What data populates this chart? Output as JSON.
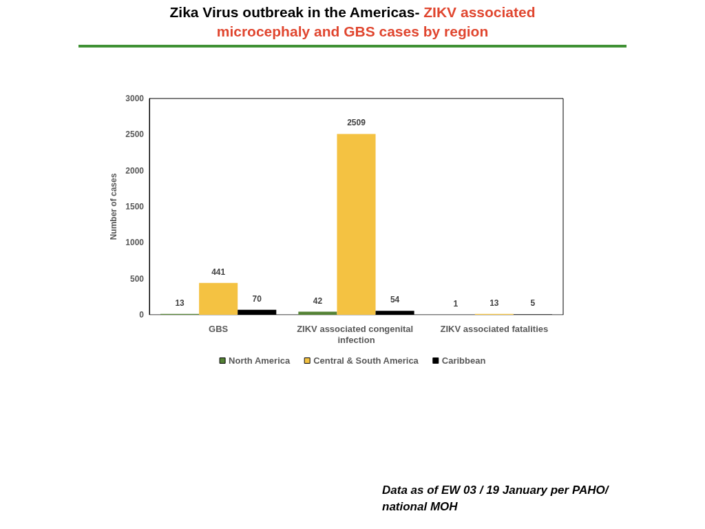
{
  "chart_data": {
    "type": "bar",
    "title": "Zika Virus outbreak in the Americas-",
    "subtitle": "ZIKV associated microcephaly and GBS cases by region",
    "ylabel": "Number of cases",
    "categories": [
      "GBS",
      "ZIKV associated congenital infection",
      "ZIKV associated fatalities"
    ],
    "series": [
      {
        "name": "North America",
        "color": "#548235",
        "values": [
          13,
          42,
          1
        ]
      },
      {
        "name": "Central & South America",
        "color": "#f4c242",
        "values": [
          441,
          2509,
          13
        ]
      },
      {
        "name": "Caribbean",
        "color": "#000000",
        "values": [
          70,
          54,
          5
        ]
      }
    ],
    "ylim": [
      0,
      3000
    ],
    "yticks": [
      0,
      500,
      1000,
      1500,
      2000,
      2500,
      3000
    ],
    "grid": false,
    "legend": "bottom",
    "data_labels": true,
    "annotations": [
      "Data as of EW 03 / 19 January per PAHO/ national MOH"
    ]
  }
}
